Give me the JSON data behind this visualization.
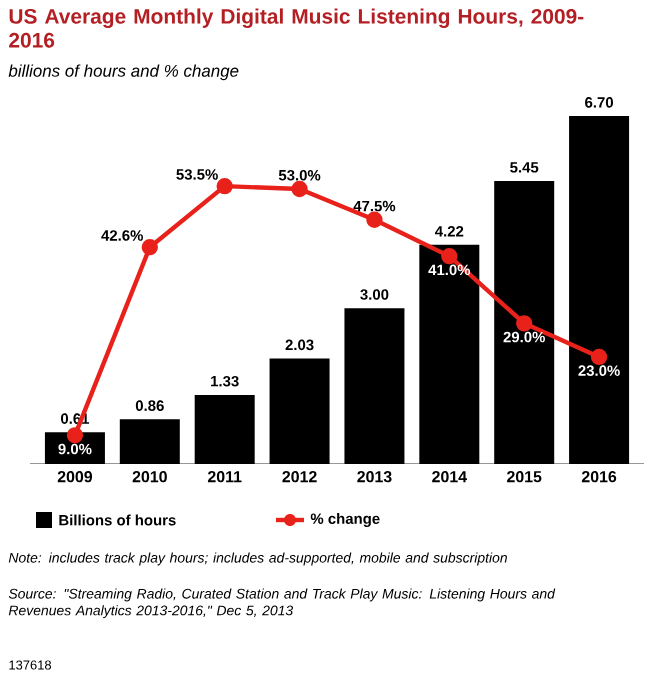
{
  "chart_data": {
    "type": "bar",
    "title": "US Average Monthly Digital Music Listening Hours, 2009-2016",
    "subtitle": "billions of hours and % change",
    "categories": [
      "2009",
      "2010",
      "2011",
      "2012",
      "2013",
      "2014",
      "2015",
      "2016"
    ],
    "series": [
      {
        "name": "Billions of hours",
        "color": "#000000",
        "values": [
          0.61,
          0.86,
          1.33,
          2.03,
          3.0,
          4.22,
          5.45,
          6.7
        ],
        "value_labels": [
          "0.61",
          "0.86",
          "1.33",
          "2.03",
          "3.00",
          "4.22",
          "5.45",
          "6.70"
        ]
      },
      {
        "name": "% change",
        "type": "line",
        "axis": "y2",
        "color": "#e8211b",
        "values": [
          9.0,
          42.6,
          53.5,
          53.0,
          47.5,
          41.0,
          29.0,
          23.0
        ],
        "value_labels": [
          "9.0%",
          "42.6%",
          "53.5%",
          "53.0%",
          "47.5%",
          "41.0%",
          "29.0%",
          "23.0%"
        ]
      }
    ],
    "tick_labels": "x",
    "legend": "bottom",
    "marker": "circle",
    "annotations": [
      "Note: includes track play hours; includes ad-supported, mobile and subscription",
      "Source: \"Streaming Radio, Curated Station and Track Play Music: Listening Hours and Revenues Analytics 2013-2016,\" Dec 5, 2013",
      "137618"
    ]
  }
}
